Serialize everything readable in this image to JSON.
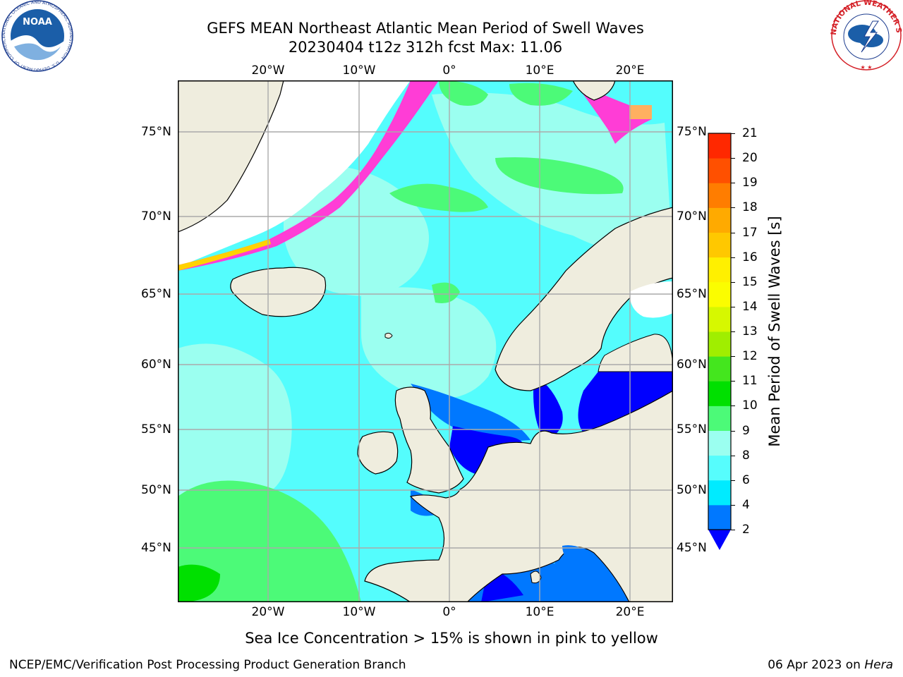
{
  "header": {
    "title_line1": "GEFS MEAN Northeast Atlantic Mean Period of Swell Waves",
    "title_line2": "20230404 t12z 312h fcst   Max: 11.06"
  },
  "logos": {
    "left": "NOAA",
    "left_ring": "NATIONAL OCEANIC AND ATMOSPHERIC ADMINISTRATION · U.S. DEPARTMENT OF COMMERCE",
    "right_ring": "NATIONAL WEATHER SERVICE"
  },
  "map": {
    "lon_labels": [
      "20°W",
      "10°W",
      "0°",
      "10°E",
      "20°E"
    ],
    "lat_labels": [
      "75°N",
      "70°N",
      "65°N",
      "60°N",
      "55°N",
      "50°N",
      "45°N"
    ],
    "colors": {
      "land": "#efedde",
      "ocean_default": "#54fdfd",
      "ice": "#ff3dd6",
      "coast": "#000000",
      "grid": "#aaaaaa"
    }
  },
  "colorbar": {
    "label": "Mean Period of Swell Waves [s]",
    "tick_labels": [
      "2",
      "4",
      "6",
      "8",
      "9",
      "10",
      "11",
      "12",
      "13",
      "14",
      "15",
      "16",
      "17",
      "18",
      "19",
      "20",
      "21"
    ],
    "colors": [
      "#0078ff",
      "#00ebff",
      "#56fdfd",
      "#9bfff0",
      "#4cfa78",
      "#00e000",
      "#44e61e",
      "#a0ee00",
      "#d6f800",
      "#fbfd00",
      "#fff000",
      "#ffc800",
      "#ffaa00",
      "#ff7d00",
      "#ff5000",
      "#ff2800",
      "#ff0000"
    ],
    "under_color": "#0000ff"
  },
  "footer": {
    "ice_note": "Sea Ice Concentration > 15% is shown in pink to yellow",
    "left": "NCEP/EMC/Verification Post Processing Product Generation Branch",
    "right_prefix": "06 Apr 2023 on ",
    "right_host": "Hera"
  }
}
